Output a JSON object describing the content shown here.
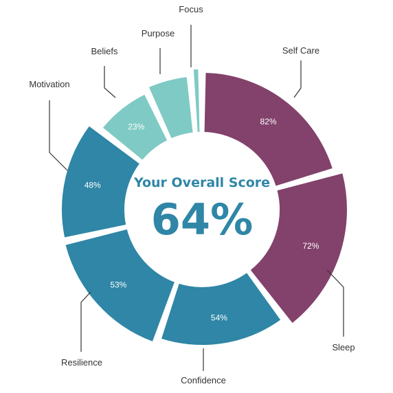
{
  "chart_data": {
    "type": "pie",
    "title": "Your Overall Score",
    "overall_score": "64%",
    "segments": [
      {
        "name": "Self Care",
        "value": 82,
        "value_label": "82%",
        "color": "#82426b"
      },
      {
        "name": "Sleep",
        "value": 72,
        "value_label": "72%",
        "color": "#82426b"
      },
      {
        "name": "Confidence",
        "value": 54,
        "value_label": "54%",
        "color": "#2f86a6"
      },
      {
        "name": "Resilience",
        "value": 53,
        "value_label": "53%",
        "color": "#2f86a6"
      },
      {
        "name": "Motivation",
        "value": 48,
        "value_label": "48%",
        "color": "#2f86a6"
      },
      {
        "name": "Beliefs",
        "value": 23,
        "value_label": "23%",
        "color": "#7fcac4"
      },
      {
        "name": "Purpose",
        "value": null,
        "value_label": "",
        "color": "#7fcac4"
      },
      {
        "name": "Focus",
        "value": null,
        "value_label": "",
        "color": "#7fcac4"
      }
    ]
  }
}
